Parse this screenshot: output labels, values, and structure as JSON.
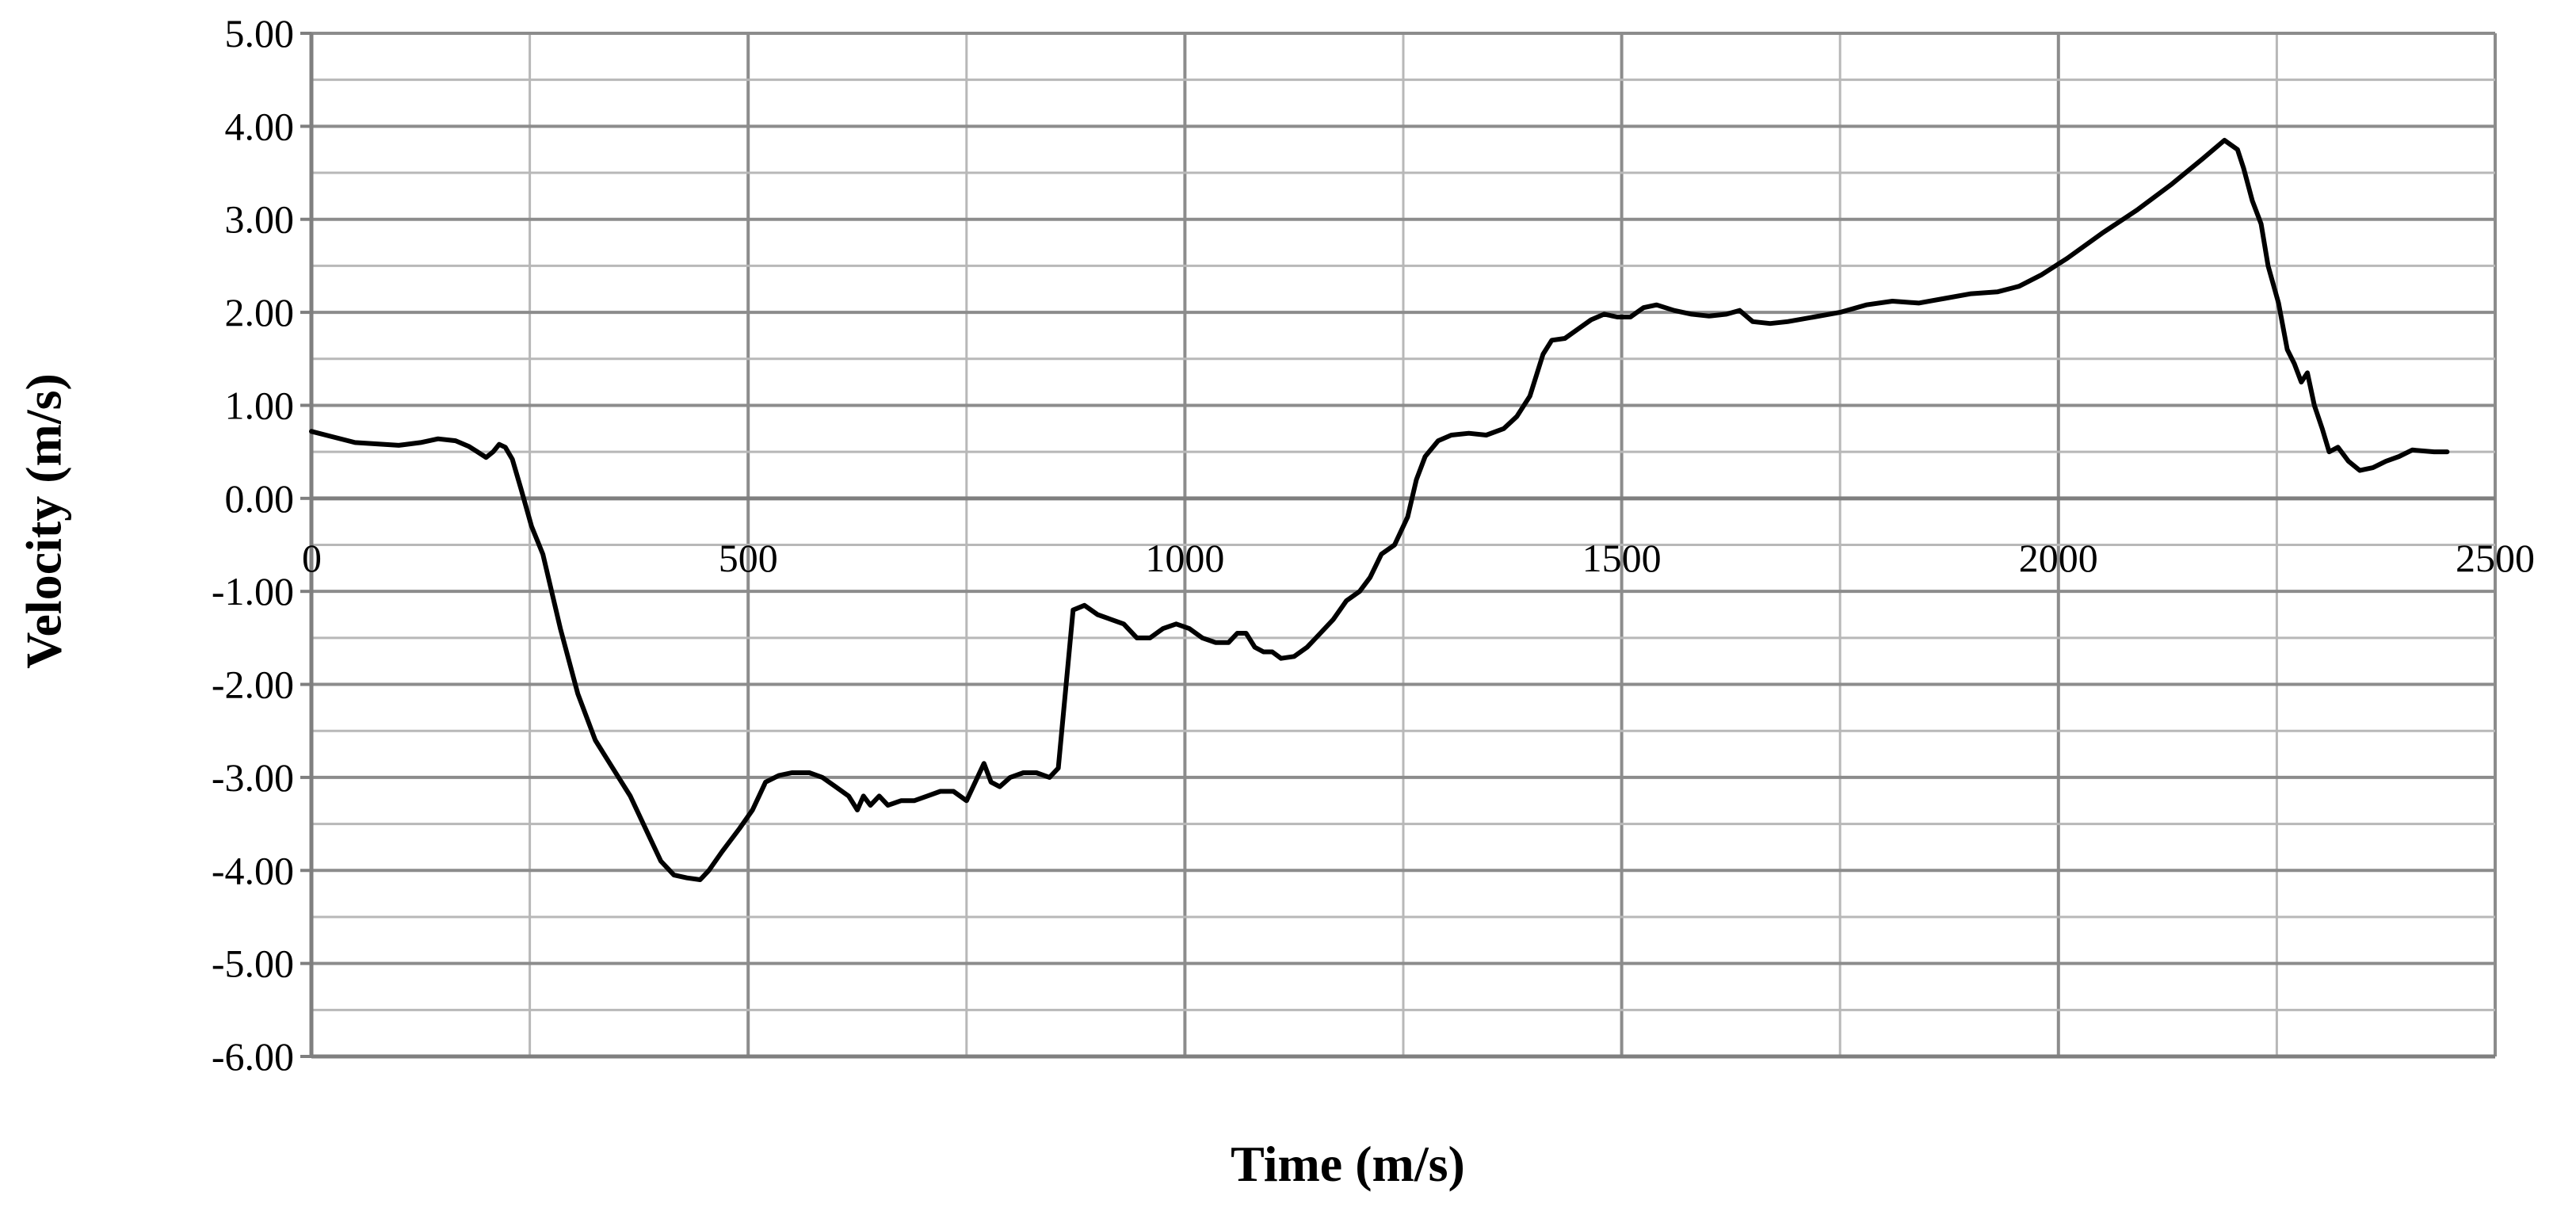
{
  "chart_data": {
    "type": "line",
    "title": "",
    "xlabel": "Time (m/s)",
    "ylabel": "Velocity (m/s)",
    "xlim": [
      0,
      2500
    ],
    "ylim": [
      -6,
      5
    ],
    "x_ticks": [
      0,
      500,
      1000,
      1500,
      2000,
      2500
    ],
    "x_tick_labels": [
      "0",
      "500",
      "1000",
      "1500",
      "2000",
      "2500"
    ],
    "y_ticks": [
      5,
      4,
      3,
      2,
      1,
      0,
      -1,
      -2,
      -3,
      -4,
      -5,
      -6
    ],
    "y_tick_labels": [
      "5.00",
      "4.00",
      "3.00",
      "2.00",
      "1.00",
      "0.00",
      "-1.00",
      "-2.00",
      "-3.00",
      "-4.00",
      "-5.00",
      "-6.00"
    ],
    "grid": true,
    "legend": "none",
    "line_color": "#000000",
    "grid_color": "#a6a6a6",
    "series": [
      {
        "points": [
          [
            0,
            0.72
          ],
          [
            25,
            0.66
          ],
          [
            50,
            0.6
          ],
          [
            100,
            0.57
          ],
          [
            125,
            0.6
          ],
          [
            145,
            0.64
          ],
          [
            165,
            0.62
          ],
          [
            180,
            0.56
          ],
          [
            190,
            0.5
          ],
          [
            200,
            0.44
          ],
          [
            208,
            0.5
          ],
          [
            215,
            0.58
          ],
          [
            222,
            0.55
          ],
          [
            230,
            0.42
          ],
          [
            240,
            0.1
          ],
          [
            252,
            -0.3
          ],
          [
            265,
            -0.6
          ],
          [
            285,
            -1.4
          ],
          [
            305,
            -2.1
          ],
          [
            325,
            -2.6
          ],
          [
            345,
            -2.9
          ],
          [
            365,
            -3.2
          ],
          [
            385,
            -3.6
          ],
          [
            400,
            -3.9
          ],
          [
            415,
            -4.05
          ],
          [
            430,
            -4.08
          ],
          [
            445,
            -4.1
          ],
          [
            455,
            -4.0
          ],
          [
            470,
            -3.8
          ],
          [
            490,
            -3.55
          ],
          [
            505,
            -3.35
          ],
          [
            520,
            -3.05
          ],
          [
            535,
            -2.98
          ],
          [
            550,
            -2.95
          ],
          [
            570,
            -2.95
          ],
          [
            585,
            -3.0
          ],
          [
            600,
            -3.1
          ],
          [
            615,
            -3.2
          ],
          [
            625,
            -3.35
          ],
          [
            632,
            -3.2
          ],
          [
            640,
            -3.3
          ],
          [
            650,
            -3.2
          ],
          [
            660,
            -3.3
          ],
          [
            675,
            -3.25
          ],
          [
            690,
            -3.25
          ],
          [
            705,
            -3.2
          ],
          [
            720,
            -3.15
          ],
          [
            735,
            -3.15
          ],
          [
            750,
            -3.25
          ],
          [
            760,
            -3.05
          ],
          [
            770,
            -2.85
          ],
          [
            778,
            -3.05
          ],
          [
            788,
            -3.1
          ],
          [
            800,
            -3.0
          ],
          [
            815,
            -2.95
          ],
          [
            830,
            -2.95
          ],
          [
            845,
            -3.0
          ],
          [
            855,
            -2.9
          ],
          [
            862,
            -2.2
          ],
          [
            872,
            -1.2
          ],
          [
            885,
            -1.15
          ],
          [
            900,
            -1.25
          ],
          [
            915,
            -1.3
          ],
          [
            930,
            -1.35
          ],
          [
            945,
            -1.5
          ],
          [
            960,
            -1.5
          ],
          [
            975,
            -1.4
          ],
          [
            990,
            -1.35
          ],
          [
            1005,
            -1.4
          ],
          [
            1020,
            -1.5
          ],
          [
            1035,
            -1.55
          ],
          [
            1050,
            -1.55
          ],
          [
            1060,
            -1.45
          ],
          [
            1070,
            -1.45
          ],
          [
            1080,
            -1.6
          ],
          [
            1090,
            -1.65
          ],
          [
            1100,
            -1.65
          ],
          [
            1110,
            -1.72
          ],
          [
            1125,
            -1.7
          ],
          [
            1140,
            -1.6
          ],
          [
            1155,
            -1.45
          ],
          [
            1170,
            -1.3
          ],
          [
            1185,
            -1.1
          ],
          [
            1200,
            -1.0
          ],
          [
            1212,
            -0.85
          ],
          [
            1225,
            -0.6
          ],
          [
            1240,
            -0.5
          ],
          [
            1255,
            -0.2
          ],
          [
            1265,
            0.2
          ],
          [
            1275,
            0.45
          ],
          [
            1290,
            0.62
          ],
          [
            1305,
            0.68
          ],
          [
            1325,
            0.7
          ],
          [
            1345,
            0.68
          ],
          [
            1365,
            0.75
          ],
          [
            1380,
            0.88
          ],
          [
            1395,
            1.1
          ],
          [
            1410,
            1.55
          ],
          [
            1420,
            1.7
          ],
          [
            1435,
            1.72
          ],
          [
            1450,
            1.82
          ],
          [
            1465,
            1.92
          ],
          [
            1480,
            1.98
          ],
          [
            1495,
            1.95
          ],
          [
            1510,
            1.95
          ],
          [
            1525,
            2.05
          ],
          [
            1540,
            2.08
          ],
          [
            1560,
            2.02
          ],
          [
            1580,
            1.98
          ],
          [
            1600,
            1.96
          ],
          [
            1620,
            1.98
          ],
          [
            1635,
            2.02
          ],
          [
            1650,
            1.9
          ],
          [
            1670,
            1.88
          ],
          [
            1690,
            1.9
          ],
          [
            1720,
            1.95
          ],
          [
            1750,
            2.0
          ],
          [
            1780,
            2.08
          ],
          [
            1810,
            2.12
          ],
          [
            1840,
            2.1
          ],
          [
            1870,
            2.15
          ],
          [
            1900,
            2.2
          ],
          [
            1930,
            2.22
          ],
          [
            1955,
            2.28
          ],
          [
            1980,
            2.4
          ],
          [
            2010,
            2.58
          ],
          [
            2050,
            2.85
          ],
          [
            2090,
            3.1
          ],
          [
            2130,
            3.38
          ],
          [
            2165,
            3.65
          ],
          [
            2190,
            3.85
          ],
          [
            2205,
            3.75
          ],
          [
            2212,
            3.55
          ],
          [
            2222,
            3.2
          ],
          [
            2232,
            2.95
          ],
          [
            2240,
            2.5
          ],
          [
            2252,
            2.1
          ],
          [
            2262,
            1.6
          ],
          [
            2270,
            1.45
          ],
          [
            2278,
            1.25
          ],
          [
            2285,
            1.35
          ],
          [
            2293,
            1.0
          ],
          [
            2302,
            0.75
          ],
          [
            2310,
            0.5
          ],
          [
            2320,
            0.55
          ],
          [
            2332,
            0.4
          ],
          [
            2345,
            0.3
          ],
          [
            2360,
            0.33
          ],
          [
            2375,
            0.4
          ],
          [
            2390,
            0.45
          ],
          [
            2405,
            0.52
          ],
          [
            2430,
            0.5
          ],
          [
            2445,
            0.5
          ]
        ]
      }
    ]
  }
}
